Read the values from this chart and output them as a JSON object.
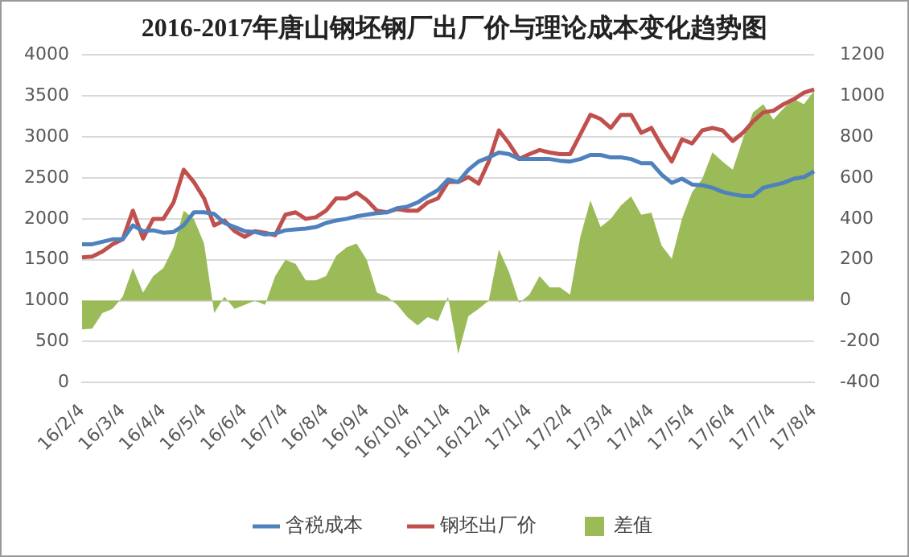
{
  "chart_data": {
    "type": "line",
    "title": "2016-2017年唐山钢坯钢厂出厂价与理论成本变化趋势图",
    "categories": [
      "16/2/4",
      null,
      null,
      null,
      "16/3/4",
      null,
      null,
      null,
      "16/4/4",
      null,
      null,
      null,
      "16/5/4",
      null,
      null,
      null,
      "16/6/4",
      null,
      null,
      null,
      "16/7/4",
      null,
      null,
      null,
      "16/8/4",
      null,
      null,
      null,
      "16/9/4",
      null,
      null,
      null,
      "16/10/4",
      null,
      null,
      null,
      "16/11/4",
      null,
      null,
      null,
      "16/12/4",
      null,
      null,
      null,
      "17/1/4",
      null,
      null,
      null,
      "17/2/4",
      null,
      null,
      null,
      "17/3/4",
      null,
      null,
      null,
      "17/4/4",
      null,
      null,
      null,
      "17/5/4",
      null,
      null,
      null,
      "17/6/4",
      null,
      null,
      null,
      "17/7/4",
      null,
      null,
      null,
      "17/8/4"
    ],
    "series": [
      {
        "name": "差值",
        "type": "area",
        "axis": "y2",
        "color": "#9bbb59",
        "values": [
          -140,
          -136,
          -60,
          -40,
          20,
          160,
          40,
          120,
          160,
          260,
          440,
          400,
          280,
          -60,
          20,
          -40,
          -20,
          0,
          -20,
          120,
          200,
          180,
          100,
          100,
          120,
          220,
          260,
          280,
          200,
          40,
          20,
          -20,
          -80,
          -120,
          -80,
          -100,
          20,
          -260,
          -75,
          -40,
          0,
          250,
          140,
          -10,
          30,
          120,
          65,
          65,
          30,
          310,
          490,
          360,
          400,
          465,
          510,
          420,
          430,
          270,
          205,
          400,
          530,
          595,
          725,
          680,
          640,
          790,
          920,
          960,
          885,
          940,
          985,
          960,
          1025
        ]
      },
      {
        "name": "含税成本",
        "color": "#4f81bd",
        "values": [
          1690,
          1690,
          1720,
          1750,
          1750,
          1920,
          1850,
          1860,
          1830,
          1840,
          1920,
          2080,
          2080,
          2060,
          1950,
          1900,
          1850,
          1840,
          1810,
          1820,
          1860,
          1870,
          1880,
          1900,
          1950,
          1980,
          2000,
          2030,
          2050,
          2070,
          2080,
          2130,
          2150,
          2200,
          2280,
          2350,
          2480,
          2450,
          2600,
          2700,
          2750,
          2810,
          2790,
          2730,
          2730,
          2730,
          2730,
          2710,
          2700,
          2730,
          2780,
          2780,
          2750,
          2750,
          2730,
          2680,
          2680,
          2540,
          2440,
          2490,
          2420,
          2410,
          2380,
          2330,
          2300,
          2280,
          2280,
          2380,
          2410,
          2440,
          2490,
          2510,
          2580
        ]
      },
      {
        "name": "钢坯出厂价",
        "color": "#c0504d",
        "values": [
          1530,
          1540,
          1600,
          1690,
          1750,
          2100,
          1760,
          2000,
          2000,
          2200,
          2600,
          2450,
          2250,
          1920,
          1980,
          1850,
          1780,
          1850,
          1830,
          1800,
          2050,
          2080,
          2000,
          2020,
          2100,
          2250,
          2250,
          2320,
          2230,
          2100,
          2080,
          2120,
          2100,
          2100,
          2200,
          2250,
          2450,
          2450,
          2510,
          2430,
          2700,
          3080,
          2920,
          2730,
          2790,
          2840,
          2810,
          2790,
          2790,
          3030,
          3270,
          3220,
          3110,
          3270,
          3270,
          3050,
          3110,
          2890,
          2700,
          2970,
          2920,
          3080,
          3110,
          3080,
          2950,
          3050,
          3190,
          3300,
          3320,
          3400,
          3460,
          3540,
          3580
        ]
      }
    ],
    "ylim": [
      0,
      4000
    ],
    "yticks": [
      0,
      500,
      1000,
      1500,
      2000,
      2500,
      3000,
      3500,
      4000
    ],
    "y2lim": [
      -400,
      1200
    ],
    "y2ticks": [
      -400,
      -200,
      0,
      200,
      400,
      600,
      800,
      1000,
      1200
    ],
    "grid": "y",
    "legend": "bottom"
  }
}
